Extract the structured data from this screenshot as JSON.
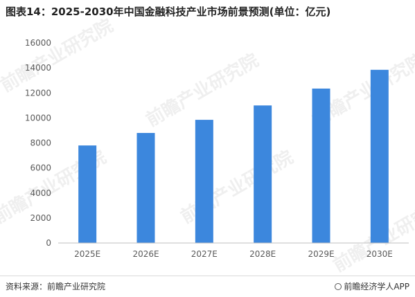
{
  "title": "图表14：2025-2030年中国金融科技产业市场前景预测(单位：亿元)",
  "watermark": "前瞻产业研究院",
  "footer": {
    "source": "资料来源：前瞻产业研究院",
    "credit": "前瞻经济学人APP"
  },
  "colors": {
    "bar": "#3c87dd",
    "axis": "#bfbfbf",
    "tick_text": "#595959"
  },
  "chart_data": {
    "type": "bar",
    "categories": [
      "2025E",
      "2026E",
      "2027E",
      "2028E",
      "2029E",
      "2030E"
    ],
    "values": [
      7800,
      8800,
      9850,
      11000,
      12350,
      13850
    ],
    "ylim": [
      0,
      16000
    ],
    "yticks": [
      0,
      2000,
      4000,
      6000,
      8000,
      10000,
      12000,
      14000,
      16000
    ],
    "grid": false,
    "legend": "none"
  }
}
